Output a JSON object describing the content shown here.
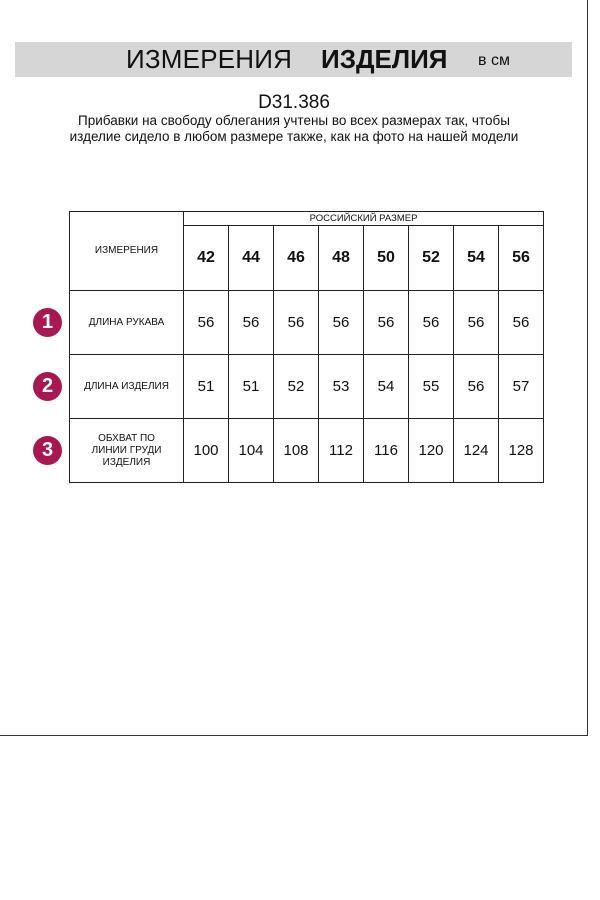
{
  "header": {
    "title_regular": "ИЗМЕРЕНИЯ",
    "title_bold": "ИЗДЕЛИЯ",
    "unit": "в см"
  },
  "product_code": "D31.386",
  "note": "Прибавки на свободу облегания учтены во всех размерах так, чтобы изделие сидело в любом размере также, как на фото на нашей модели",
  "accent_color": "#a8174f",
  "table": {
    "corner_label": "ИЗМЕРЕНИЯ",
    "group_header": "РОССИЙСКИЙ РАЗМЕР",
    "sizes": [
      "42",
      "44",
      "46",
      "48",
      "50",
      "52",
      "54",
      "56"
    ],
    "rows": [
      {
        "badge": "1",
        "label": "ДЛИНА РУКАВА",
        "values": [
          "56",
          "56",
          "56",
          "56",
          "56",
          "56",
          "56",
          "56"
        ]
      },
      {
        "badge": "2",
        "label": "ДЛИНА ИЗДЕЛИЯ",
        "values": [
          "51",
          "51",
          "52",
          "53",
          "54",
          "55",
          "56",
          "57"
        ]
      },
      {
        "badge": "3",
        "label": "ОБХВАТ ПО ЛИНИИ ГРУДИ ИЗДЕЛИЯ",
        "values": [
          "100",
          "104",
          "108",
          "112",
          "116",
          "120",
          "124",
          "128"
        ]
      }
    ]
  }
}
